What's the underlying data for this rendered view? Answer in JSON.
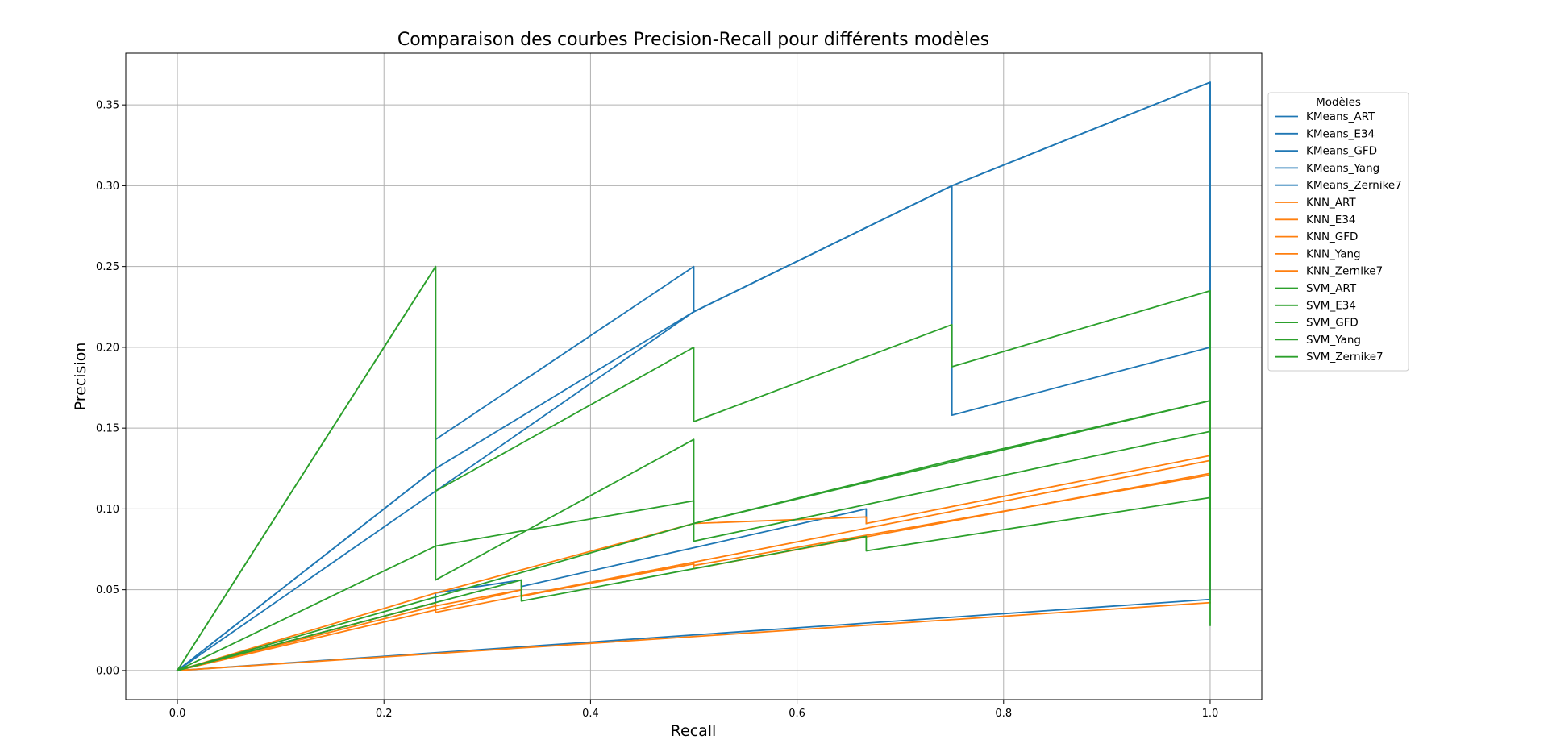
{
  "chart_data": {
    "type": "line",
    "title": "Comparaison des courbes Precision-Recall pour différents modèles",
    "xlabel": "Recall",
    "ylabel": "Precision",
    "xlim": [
      -0.05,
      1.05
    ],
    "ylim": [
      -0.018,
      0.382
    ],
    "xticks": [
      0.0,
      0.2,
      0.4,
      0.6,
      0.8,
      1.0
    ],
    "xtick_labels": [
      "0.0",
      "0.2",
      "0.4",
      "0.6",
      "0.8",
      "1.0"
    ],
    "yticks": [
      0.0,
      0.05,
      0.1,
      0.15,
      0.2,
      0.25,
      0.3,
      0.35
    ],
    "ytick_labels": [
      "0.00",
      "0.05",
      "0.10",
      "0.15",
      "0.20",
      "0.25",
      "0.30",
      "0.35"
    ],
    "grid": true,
    "legend": {
      "title": "Modèles",
      "placement": "outside-right"
    },
    "colors": {
      "KMeans": "#1f77b4",
      "KNN": "#ff7f0e",
      "SVM": "#2ca02c"
    },
    "series": [
      {
        "name": "KMeans_ART",
        "color": "#1f77b4",
        "x": [
          0,
          0.25,
          0.25,
          0.5,
          0.5,
          0.75,
          0.75,
          1.0,
          1.0
        ],
        "y": [
          0,
          0.125,
          0.143,
          0.25,
          0.222,
          0.3,
          0.158,
          0.2,
          0.2
        ]
      },
      {
        "name": "KMeans_E34",
        "color": "#1f77b4",
        "x": [
          0,
          0.5,
          0.75,
          1.0,
          1.0
        ],
        "y": [
          0,
          0.222,
          0.3,
          0.364,
          0.045
        ]
      },
      {
        "name": "KMeans_GFD",
        "color": "#1f77b4",
        "x": [
          0,
          0.25,
          0.25,
          0.333,
          0.333,
          0.667,
          0.667
        ],
        "y": [
          0,
          0.042,
          0.048,
          0.056,
          0.052,
          0.1,
          0.091
        ]
      },
      {
        "name": "KMeans_Yang",
        "color": "#1f77b4",
        "x": [
          0,
          1.0
        ],
        "y": [
          0,
          0.044
        ]
      },
      {
        "name": "KMeans_Zernike7",
        "color": "#1f77b4",
        "x": [
          0,
          0.25,
          0.5,
          0.75,
          1.0,
          1.0
        ],
        "y": [
          0,
          0.125,
          0.222,
          0.3,
          0.364,
          0.2
        ]
      },
      {
        "name": "KNN_ART",
        "color": "#ff7f0e",
        "x": [
          0,
          0.25,
          0.5,
          0.667,
          0.667,
          1.0
        ],
        "y": [
          0,
          0.048,
          0.091,
          0.095,
          0.091,
          0.133
        ]
      },
      {
        "name": "KNN_E34",
        "color": "#ff7f0e",
        "x": [
          0,
          1.0
        ],
        "y": [
          0,
          0.042
        ]
      },
      {
        "name": "KNN_GFD",
        "color": "#ff7f0e",
        "x": [
          0,
          0.25,
          0.25,
          0.5,
          0.5,
          1.0
        ],
        "y": [
          0,
          0.042,
          0.036,
          0.067,
          0.065,
          0.121
        ]
      },
      {
        "name": "KNN_Yang",
        "color": "#ff7f0e",
        "x": [
          0,
          0.333,
          0.333,
          0.5,
          0.5,
          1.0
        ],
        "y": [
          0,
          0.05,
          0.046,
          0.066,
          0.063,
          0.122
        ]
      },
      {
        "name": "KNN_Zernike7",
        "color": "#ff7f0e",
        "x": [
          0,
          0.25,
          0.333,
          0.333,
          1.0
        ],
        "y": [
          0,
          0.04,
          0.05,
          0.046,
          0.13
        ]
      },
      {
        "name": "SVM_ART",
        "color": "#2ca02c",
        "x": [
          0,
          0.25,
          0.25,
          0.5,
          0.5,
          1.0,
          1.0
        ],
        "y": [
          0,
          0.25,
          0.056,
          0.143,
          0.08,
          0.148,
          0.083
        ]
      },
      {
        "name": "SVM_E34",
        "color": "#2ca02c",
        "x": [
          0,
          0.25,
          0.25,
          0.5,
          0.5,
          0.75,
          0.75,
          1.0,
          1.0
        ],
        "y": [
          0,
          0.25,
          0.111,
          0.2,
          0.154,
          0.214,
          0.188,
          0.235,
          0.125
        ]
      },
      {
        "name": "SVM_GFD",
        "color": "#2ca02c",
        "x": [
          0,
          0.25,
          0.5,
          0.5,
          1.0,
          1.0
        ],
        "y": [
          0,
          0.077,
          0.105,
          0.091,
          0.167,
          0.028
        ]
      },
      {
        "name": "SVM_Yang",
        "color": "#2ca02c",
        "x": [
          0,
          0.333,
          0.333,
          0.667,
          0.667,
          1.0,
          1.0
        ],
        "y": [
          0,
          0.056,
          0.043,
          0.083,
          0.074,
          0.107,
          0.056
        ]
      },
      {
        "name": "SVM_Zernike7",
        "color": "#2ca02c",
        "x": [
          0,
          0.5,
          0.75,
          1.0
        ],
        "y": [
          0,
          0.091,
          0.13,
          0.167
        ]
      }
    ]
  }
}
